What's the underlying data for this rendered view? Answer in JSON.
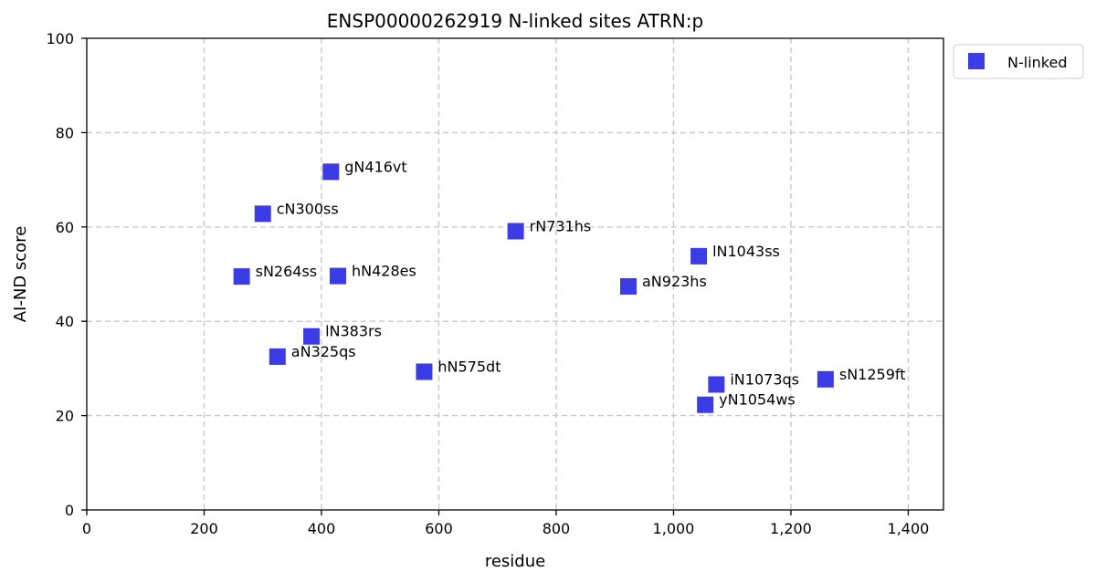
{
  "chart_data": {
    "type": "scatter",
    "title": "ENSP00000262919 N-linked sites ATRN:p",
    "xlabel": "residue",
    "ylabel": "AI-ND score",
    "xlim": [
      0,
      1460
    ],
    "ylim": [
      0,
      100
    ],
    "x_ticks": [
      0,
      200,
      400,
      600,
      800,
      1000,
      1200,
      1400
    ],
    "x_tick_labels": [
      "0",
      "200",
      "400",
      "600",
      "800",
      "1,000",
      "1,200",
      "1,400"
    ],
    "y_ticks": [
      0,
      20,
      40,
      60,
      80,
      100
    ],
    "y_tick_labels": [
      "0",
      "20",
      "40",
      "60",
      "80",
      "100"
    ],
    "grid": true,
    "legend_position": "outside-top-right",
    "series": [
      {
        "name": "N-linked",
        "color": "#3c3ce6",
        "marker": "square",
        "points": [
          {
            "x": 264,
            "y": 49.5,
            "label": "sN264ss"
          },
          {
            "x": 300,
            "y": 62.8,
            "label": "cN300ss"
          },
          {
            "x": 325,
            "y": 32.5,
            "label": "aN325qs"
          },
          {
            "x": 383,
            "y": 36.8,
            "label": "lN383rs"
          },
          {
            "x": 416,
            "y": 71.7,
            "label": "gN416vt"
          },
          {
            "x": 428,
            "y": 49.6,
            "label": "hN428es"
          },
          {
            "x": 575,
            "y": 29.3,
            "label": "hN575dt"
          },
          {
            "x": 731,
            "y": 59.1,
            "label": "rN731hs"
          },
          {
            "x": 923,
            "y": 47.4,
            "label": "aN923hs"
          },
          {
            "x": 1043,
            "y": 53.8,
            "label": "lN1043ss"
          },
          {
            "x": 1054,
            "y": 22.3,
            "label": "yN1054ws"
          },
          {
            "x": 1073,
            "y": 26.6,
            "label": "iN1073qs"
          },
          {
            "x": 1259,
            "y": 27.7,
            "label": "sN1259ft"
          }
        ]
      }
    ]
  }
}
